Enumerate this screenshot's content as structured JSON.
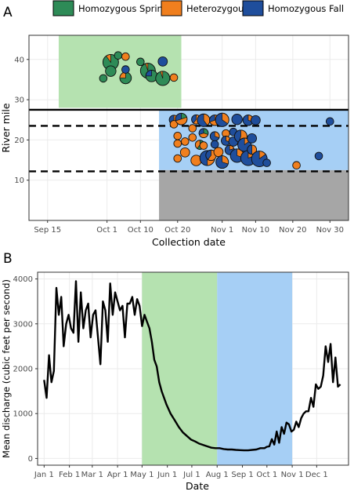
{
  "figure": {
    "panel_a_label": "A",
    "panel_b_label": "B"
  },
  "legend": [
    {
      "label": "Homozygous Spring",
      "color": "#2e8b57"
    },
    {
      "label": "Heterozygous",
      "color": "#f07f1e"
    },
    {
      "label": "Homozygous Fall",
      "color": "#1f4e9c"
    }
  ],
  "colors": {
    "spring_window": "#b5e2b0",
    "fall_window": "#a6cff5",
    "blocked_reach": "#a6a6a6",
    "line": "#000000",
    "pie_outline": "#111111"
  },
  "chart_data": [
    {
      "type": "scatter",
      "panel": "A",
      "xlabel": "Collection date",
      "ylabel": "River mile",
      "x_ticks": [
        "Sep 15",
        "Oct 1",
        "Oct 10",
        "Oct 20",
        "Nov 1",
        "Nov 10",
        "Nov 20",
        "Nov 30"
      ],
      "x_tick_days": [
        0,
        16,
        25,
        35,
        47,
        56,
        66,
        76
      ],
      "xlim_days": [
        -5,
        81
      ],
      "ylim": [
        0,
        46
      ],
      "y_ticks": [
        10,
        20,
        30,
        40
      ],
      "grid": true,
      "shaded_regions": [
        {
          "name": "spring",
          "x_start_day": 3,
          "x_end_day": 36,
          "y_start": 28,
          "y_end": 46
        },
        {
          "name": "fall",
          "x_start_day": 30,
          "x_end_day": 81,
          "y_start": 12.5,
          "y_end": 27.5
        },
        {
          "name": "blocked",
          "x_start_day": 30,
          "x_end_day": 81,
          "y_start": 0,
          "y_end": 12.5
        }
      ],
      "reference_lines": [
        {
          "y": 27.5,
          "style": "solid"
        },
        {
          "y": 23.5,
          "style": "dashed"
        },
        {
          "y": 12.2,
          "style": "dashed"
        }
      ],
      "points": [
        {
          "date": "Sep 30",
          "river_mile": 35.3,
          "n": 1,
          "spring": 1.0,
          "het": 0.0,
          "fall": 0.0
        },
        {
          "date": "Oct 2",
          "river_mile": 39.3,
          "n": 9,
          "spring": 0.9,
          "het": 0.1,
          "fall": 0.0
        },
        {
          "date": "Oct 2",
          "river_mile": 37.1,
          "n": 3,
          "spring": 1.0,
          "het": 0.0,
          "fall": 0.0
        },
        {
          "date": "Oct 4",
          "river_mile": 41.0,
          "n": 1,
          "spring": 1.0,
          "het": 0.0,
          "fall": 0.0
        },
        {
          "date": "Oct 6",
          "river_mile": 40.7,
          "n": 1,
          "spring": 0.0,
          "het": 1.0,
          "fall": 0.0
        },
        {
          "date": "Oct 6",
          "river_mile": 35.4,
          "n": 4,
          "spring": 0.75,
          "het": 0.25,
          "fall": 0.0
        },
        {
          "date": "Oct 6",
          "river_mile": 37.5,
          "n": 1,
          "spring": 0.0,
          "het": 0.0,
          "fall": 1.0
        },
        {
          "date": "Oct 10",
          "river_mile": 39.4,
          "n": 1,
          "spring": 1.0,
          "het": 0.0,
          "fall": 0.0
        },
        {
          "date": "Oct 12",
          "river_mile": 37.2,
          "n": 8,
          "spring": 0.95,
          "het": 0.05,
          "fall": 0.0
        },
        {
          "date": "Oct 13",
          "river_mile": 35.9,
          "n": 4,
          "spring": 0.75,
          "het": 0.0,
          "fall": 0.25
        },
        {
          "date": "Oct 16",
          "river_mile": 35.3,
          "n": 7,
          "spring": 0.95,
          "het": 0.05,
          "fall": 0.0
        },
        {
          "date": "Oct 16",
          "river_mile": 39.5,
          "n": 2,
          "spring": 0.0,
          "het": 0.0,
          "fall": 1.0
        },
        {
          "date": "Oct 19",
          "river_mile": 35.5,
          "n": 1,
          "spring": 0.0,
          "het": 1.0,
          "fall": 0.0
        },
        {
          "date": "Oct 19",
          "river_mile": 25.0,
          "n": 2,
          "spring": 0.0,
          "het": 0.6,
          "fall": 0.4
        },
        {
          "date": "Oct 19",
          "river_mile": 23.9,
          "n": 1,
          "spring": 0.0,
          "het": 1.0,
          "fall": 0.0
        },
        {
          "date": "Oct 20",
          "river_mile": 21.0,
          "n": 1,
          "spring": 0.0,
          "het": 1.0,
          "fall": 0.0
        },
        {
          "date": "Oct 20",
          "river_mile": 19.1,
          "n": 1,
          "spring": 0.0,
          "het": 1.0,
          "fall": 0.0
        },
        {
          "date": "Oct 20",
          "river_mile": 15.4,
          "n": 1,
          "spring": 0.0,
          "het": 1.0,
          "fall": 0.0
        },
        {
          "date": "Oct 21",
          "river_mile": 25.2,
          "n": 4,
          "spring": 0.2,
          "het": 0.5,
          "fall": 0.3
        },
        {
          "date": "Oct 22",
          "river_mile": 16.9,
          "n": 2,
          "spring": 0.0,
          "het": 1.0,
          "fall": 0.0
        },
        {
          "date": "Oct 22",
          "river_mile": 19.6,
          "n": 1,
          "spring": 0.0,
          "het": 1.0,
          "fall": 0.0
        },
        {
          "date": "Oct 24",
          "river_mile": 22.9,
          "n": 1,
          "spring": 0.0,
          "het": 1.0,
          "fall": 0.0
        },
        {
          "date": "Oct 24",
          "river_mile": 20.6,
          "n": 1,
          "spring": 0.0,
          "het": 1.0,
          "fall": 0.0
        },
        {
          "date": "Oct 25",
          "river_mile": 25.1,
          "n": 2,
          "spring": 0.0,
          "het": 0.6,
          "fall": 0.4
        },
        {
          "date": "Oct 25",
          "river_mile": 14.9,
          "n": 3,
          "spring": 0.0,
          "het": 1.0,
          "fall": 0.0
        },
        {
          "date": "Oct 26",
          "river_mile": 18.8,
          "n": 2,
          "spring": 0.6,
          "het": 0.4,
          "fall": 0.0
        },
        {
          "date": "Oct 27",
          "river_mile": 24.9,
          "n": 5,
          "spring": 0.0,
          "het": 0.4,
          "fall": 0.6
        },
        {
          "date": "Oct 27",
          "river_mile": 21.7,
          "n": 2,
          "spring": 0.3,
          "het": 0.4,
          "fall": 0.3
        },
        {
          "date": "Oct 27",
          "river_mile": 18.6,
          "n": 1,
          "spring": 0.0,
          "het": 1.0,
          "fall": 0.0
        },
        {
          "date": "Oct 28",
          "river_mile": 15.5,
          "n": 8,
          "spring": 0.15,
          "het": 0.35,
          "fall": 0.5
        },
        {
          "date": "Oct 29",
          "river_mile": 16.2,
          "n": 3,
          "spring": 0.0,
          "het": 0.6,
          "fall": 0.4
        },
        {
          "date": "Oct 30",
          "river_mile": 24.9,
          "n": 3,
          "spring": 0.0,
          "het": 0.7,
          "fall": 0.3
        },
        {
          "date": "Oct 30",
          "river_mile": 20.9,
          "n": 2,
          "spring": 0.0,
          "het": 0.3,
          "fall": 0.7
        },
        {
          "date": "Oct 30",
          "river_mile": 18.9,
          "n": 1,
          "spring": 0.0,
          "het": 0.0,
          "fall": 1.0
        },
        {
          "date": "Oct 31",
          "river_mile": 17.0,
          "n": 2,
          "spring": 0.0,
          "het": 1.0,
          "fall": 0.0
        },
        {
          "date": "Nov 1",
          "river_mile": 25.0,
          "n": 6,
          "spring": 0.0,
          "het": 0.35,
          "fall": 0.65
        },
        {
          "date": "Nov 1",
          "river_mile": 14.5,
          "n": 5,
          "spring": 0.0,
          "het": 0.3,
          "fall": 0.7
        },
        {
          "date": "Nov 2",
          "river_mile": 21.6,
          "n": 1,
          "spring": 0.0,
          "het": 1.0,
          "fall": 0.0
        },
        {
          "date": "Nov 2",
          "river_mile": 19.8,
          "n": 2,
          "spring": 0.0,
          "het": 0.3,
          "fall": 0.7
        },
        {
          "date": "Nov 3",
          "river_mile": 17.5,
          "n": 2,
          "spring": 0.0,
          "het": 0.2,
          "fall": 0.8
        },
        {
          "date": "Nov 4",
          "river_mile": 22.0,
          "n": 1,
          "spring": 0.0,
          "het": 0.0,
          "fall": 1.0
        },
        {
          "date": "Nov 4",
          "river_mile": 19.6,
          "n": 2,
          "spring": 0.0,
          "het": 0.0,
          "fall": 1.0
        },
        {
          "date": "Nov 5",
          "river_mile": 25.1,
          "n": 3,
          "spring": 0.0,
          "het": 0.0,
          "fall": 1.0
        },
        {
          "date": "Nov 5",
          "river_mile": 16.1,
          "n": 6,
          "spring": 0.0,
          "het": 0.3,
          "fall": 0.7
        },
        {
          "date": "Nov 6",
          "river_mile": 20.9,
          "n": 5,
          "spring": 0.0,
          "het": 0.55,
          "fall": 0.45
        },
        {
          "date": "Nov 7",
          "river_mile": 18.8,
          "n": 6,
          "spring": 0.0,
          "het": 0.15,
          "fall": 0.85
        },
        {
          "date": "Nov 8",
          "river_mile": 24.9,
          "n": 3,
          "spring": 0.0,
          "het": 0.3,
          "fall": 0.7
        },
        {
          "date": "Nov 8",
          "river_mile": 15.5,
          "n": 8,
          "spring": 0.0,
          "het": 0.2,
          "fall": 0.8
        },
        {
          "date": "Nov 9",
          "river_mile": 20.4,
          "n": 2,
          "spring": 0.0,
          "het": 0.0,
          "fall": 1.0
        },
        {
          "date": "Nov 9",
          "river_mile": 17.6,
          "n": 2,
          "spring": 0.0,
          "het": 0.5,
          "fall": 0.5
        },
        {
          "date": "Nov 10",
          "river_mile": 24.9,
          "n": 2,
          "spring": 0.0,
          "het": 0.0,
          "fall": 1.0
        },
        {
          "date": "Nov 11",
          "river_mile": 15.3,
          "n": 9,
          "spring": 0.0,
          "het": 0.15,
          "fall": 0.85
        },
        {
          "date": "Nov 13",
          "river_mile": 14.3,
          "n": 1,
          "spring": 0.0,
          "het": 0.0,
          "fall": 1.0
        },
        {
          "date": "Nov 21",
          "river_mile": 13.7,
          "n": 1,
          "spring": 0.0,
          "het": 1.0,
          "fall": 0.0
        },
        {
          "date": "Nov 27",
          "river_mile": 16.0,
          "n": 1,
          "spring": 0.0,
          "het": 0.0,
          "fall": 1.0
        },
        {
          "date": "Nov 30",
          "river_mile": 24.6,
          "n": 1,
          "spring": 0.0,
          "het": 0.0,
          "fall": 1.0
        }
      ]
    },
    {
      "type": "line",
      "panel": "B",
      "xlabel": "Date",
      "ylabel": "Mean discharge (cubic feet per second)",
      "x_ticks": [
        "Jan 1",
        "Feb 1",
        "Mar 1",
        "Apr 1",
        "May 1",
        "Jun 1",
        "Jul 1",
        "Aug 1",
        "Sep 1",
        "Oct 1",
        "Nov 1",
        "Dec 1"
      ],
      "x_tick_days": [
        0,
        31,
        59,
        90,
        120,
        151,
        181,
        212,
        243,
        273,
        304,
        334
      ],
      "xlim_days": [
        -8,
        373
      ],
      "ylim": [
        -150,
        4150
      ],
      "y_ticks": [
        0,
        1000,
        2000,
        3000,
        4000
      ],
      "grid": true,
      "shaded_regions": [
        {
          "name": "spring",
          "x_start_day": 120,
          "x_end_day": 212
        },
        {
          "name": "fall",
          "x_start_day": 212,
          "x_end_day": 304
        }
      ],
      "series": [
        {
          "x_day": [
            0,
            3,
            6,
            9,
            12,
            15,
            18,
            21,
            24,
            27,
            30,
            33,
            36,
            39,
            42,
            45,
            48,
            51,
            54,
            57,
            60,
            63,
            66,
            69,
            72,
            75,
            78,
            81,
            84,
            87,
            90,
            93,
            96,
            99,
            102,
            105,
            108,
            111,
            114,
            117,
            120,
            123,
            126,
            129,
            132,
            135,
            138,
            141,
            144,
            147,
            150,
            155,
            160,
            165,
            170,
            175,
            180,
            185,
            190,
            195,
            200,
            205,
            210,
            215,
            220,
            225,
            230,
            235,
            240,
            245,
            250,
            255,
            260,
            265,
            270,
            273,
            276,
            279,
            282,
            285,
            288,
            291,
            294,
            297,
            300,
            303,
            306,
            309,
            312,
            315,
            318,
            321,
            324,
            327,
            330,
            333,
            336,
            339,
            342,
            345,
            348,
            351,
            354,
            357,
            360,
            363
          ],
          "y": [
            1750,
            1350,
            2300,
            1700,
            1950,
            3800,
            3200,
            3600,
            2500,
            3000,
            3200,
            2900,
            2800,
            3950,
            2600,
            3700,
            2900,
            3300,
            3450,
            2700,
            3200,
            3300,
            2700,
            2100,
            3500,
            3300,
            2600,
            3900,
            3200,
            3700,
            3500,
            3300,
            3400,
            2700,
            3450,
            3450,
            3600,
            3200,
            3550,
            3400,
            2950,
            3200,
            3050,
            2900,
            2600,
            2200,
            2050,
            1700,
            1500,
            1350,
            1200,
            1000,
            850,
            700,
            580,
            500,
            420,
            380,
            330,
            300,
            270,
            240,
            230,
            230,
            210,
            200,
            200,
            190,
            185,
            180,
            180,
            190,
            200,
            230,
            230,
            260,
            270,
            430,
            310,
            600,
            350,
            700,
            550,
            800,
            760,
            600,
            640,
            820,
            700,
            900,
            1000,
            1050,
            1050,
            1350,
            1150,
            1650,
            1550,
            1600,
            1850,
            2500,
            2150,
            2550,
            1700,
            2250,
            1600,
            1650
          ]
        }
      ]
    }
  ]
}
